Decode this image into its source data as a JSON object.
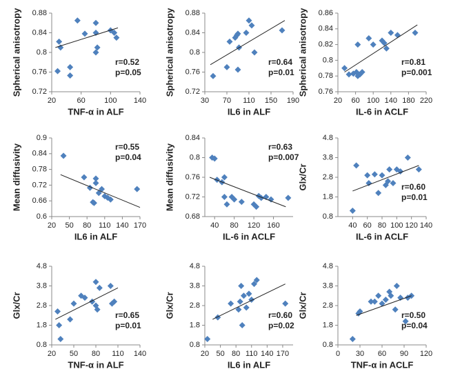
{
  "chart_data": [
    {
      "type": "scatter",
      "ylabel": "Spherical anisotropy",
      "xlabel": "TNF-α in ALF",
      "xlim": [
        20,
        140
      ],
      "xticks": [
        20,
        60,
        100,
        140
      ],
      "ylim": [
        0.72,
        0.88
      ],
      "yticks": [
        0.72,
        0.76,
        0.8,
        0.84,
        0.88
      ],
      "color": "#4f81bd",
      "x": [
        30,
        32,
        28,
        45,
        45,
        55,
        65,
        80,
        80,
        80,
        82,
        100,
        105,
        108
      ],
      "values": [
        0.822,
        0.81,
        0.762,
        0.77,
        0.753,
        0.865,
        0.838,
        0.86,
        0.84,
        0.8,
        0.81,
        0.845,
        0.84,
        0.83
      ],
      "trendline": {
        "x": [
          25,
          110
        ],
        "y": [
          0.81,
          0.85
        ]
      },
      "annotations": [
        "r=0.52",
        "p=0.05"
      ],
      "annotation_corner": "lower-right"
    },
    {
      "type": "scatter",
      "ylabel": "Spherical anisotropy",
      "xlabel": "IL6 in ALF",
      "xlim": [
        30,
        190
      ],
      "xticks": [
        30,
        70,
        110,
        150,
        190
      ],
      "ylim": [
        0.72,
        0.88
      ],
      "yticks": [
        0.72,
        0.76,
        0.8,
        0.84,
        0.88
      ],
      "color": "#4f81bd",
      "x": [
        45,
        70,
        75,
        85,
        88,
        90,
        92,
        90,
        105,
        110,
        115,
        120,
        170
      ],
      "values": [
        0.752,
        0.77,
        0.822,
        0.83,
        0.835,
        0.838,
        0.81,
        0.765,
        0.84,
        0.865,
        0.855,
        0.8,
        0.845
      ],
      "trendline": {
        "x": [
          40,
          175
        ],
        "y": [
          0.775,
          0.865
        ]
      },
      "annotations": [
        "r=0.64",
        "p=0.01"
      ],
      "annotation_corner": "lower-right"
    },
    {
      "type": "scatter",
      "ylabel": "Spherical anisotropy",
      "xlabel": "IL-6 in ACLF",
      "xlim": [
        20,
        220
      ],
      "xticks": [
        20,
        60,
        100,
        140,
        180,
        220
      ],
      "ylim": [
        0.76,
        0.86
      ],
      "yticks": [
        0.76,
        0.78,
        0.8,
        0.82,
        0.84,
        0.86
      ],
      "color": "#4f81bd",
      "x": [
        35,
        45,
        55,
        62,
        65,
        70,
        75,
        65,
        90,
        100,
        120,
        125,
        130,
        140,
        155,
        195
      ],
      "values": [
        0.79,
        0.782,
        0.783,
        0.785,
        0.78,
        0.782,
        0.785,
        0.82,
        0.828,
        0.82,
        0.825,
        0.822,
        0.815,
        0.835,
        0.832,
        0.835
      ],
      "trendline": {
        "x": [
          35,
          200
        ],
        "y": [
          0.785,
          0.845
        ]
      },
      "annotations": [
        "r=0.81",
        "p=0.001"
      ],
      "annotation_corner": "lower-right"
    },
    {
      "type": "scatter",
      "ylabel": "Mean diffusivity",
      "xlabel": "IL6 in ALF",
      "xlim": [
        20,
        170
      ],
      "xticks": [
        20,
        50,
        80,
        110,
        140,
        170
      ],
      "ylim": [
        0.6,
        0.9
      ],
      "yticks": [
        0.6,
        0.66,
        0.72,
        0.78,
        0.84,
        0.9
      ],
      "color": "#4f81bd",
      "x": [
        40,
        75,
        85,
        90,
        92,
        95,
        95,
        100,
        105,
        110,
        115,
        120,
        165
      ],
      "values": [
        0.832,
        0.75,
        0.71,
        0.655,
        0.652,
        0.745,
        0.728,
        0.69,
        0.705,
        0.678,
        0.672,
        0.665,
        0.705
      ],
      "trendline": {
        "x": [
          35,
          170
        ],
        "y": [
          0.76,
          0.635
        ]
      },
      "annotations": [
        "r=0.55",
        "p=0.04"
      ],
      "annotation_corner": "upper-right"
    },
    {
      "type": "scatter",
      "ylabel": "Mean diffusivity",
      "xlabel": "IL-6 in ACLF",
      "xlim": [
        20,
        200
      ],
      "xticks": [
        40,
        80,
        120,
        160
      ],
      "ylim": [
        0.68,
        0.84
      ],
      "yticks": [
        0.68,
        0.72,
        0.76,
        0.8,
        0.84
      ],
      "color": "#4f81bd",
      "x": [
        35,
        40,
        45,
        55,
        60,
        60,
        65,
        75,
        80,
        95,
        120,
        125,
        130,
        135,
        145,
        155,
        190
      ],
      "values": [
        0.8,
        0.798,
        0.755,
        0.75,
        0.76,
        0.72,
        0.705,
        0.72,
        0.715,
        0.71,
        0.705,
        0.7,
        0.722,
        0.718,
        0.72,
        0.715,
        0.718
      ],
      "trendline": {
        "x": [
          30,
          185
        ],
        "y": [
          0.76,
          0.7
        ]
      },
      "annotations": [
        "r=0.63",
        "p=0.007"
      ],
      "annotation_corner": "upper-right"
    },
    {
      "type": "scatter",
      "ylabel": "Glx/Cr",
      "xlabel": "IL-6 in ACLF",
      "xlim": [
        20,
        140
      ],
      "xticks": [
        40,
        60,
        80,
        100,
        120,
        140
      ],
      "ylim": [
        0.8,
        4.8
      ],
      "yticks": [
        0.8,
        1.8,
        2.8,
        3.8,
        4.8
      ],
      "color": "#4f81bd",
      "x": [
        40,
        45,
        60,
        62,
        70,
        75,
        80,
        85,
        88,
        90,
        95,
        100,
        105,
        115,
        130
      ],
      "values": [
        1.1,
        3.4,
        2.9,
        2.5,
        2.95,
        2.0,
        2.9,
        2.4,
        2.6,
        3.2,
        2.5,
        3.2,
        3.1,
        3.8,
        3.2
      ],
      "trendline": {
        "x": [
          40,
          130
        ],
        "y": [
          2.1,
          3.4
        ]
      },
      "annotations": [
        "r=0.60",
        "p=0.01"
      ],
      "annotation_corner": "lower-right"
    },
    {
      "type": "scatter",
      "ylabel": "Glx/Cr",
      "xlabel": "TNF-α in ALF",
      "xlim": [
        20,
        140
      ],
      "xticks": [
        20,
        50,
        80,
        110,
        140
      ],
      "ylim": [
        0.8,
        4.8
      ],
      "yticks": [
        0.8,
        1.8,
        2.8,
        3.8,
        4.8
      ],
      "color": "#4f81bd",
      "x": [
        28,
        30,
        32,
        45,
        50,
        60,
        65,
        75,
        80,
        82,
        80,
        85,
        100,
        102,
        105
      ],
      "values": [
        2.5,
        1.8,
        1.1,
        2.1,
        2.9,
        3.3,
        3.2,
        3.0,
        2.8,
        2.6,
        4.0,
        3.7,
        3.8,
        2.9,
        3.0
      ],
      "trendline": {
        "x": [
          25,
          110
        ],
        "y": [
          2.1,
          3.7
        ]
      },
      "annotations": [
        "r=0.65",
        "p=0.01"
      ],
      "annotation_corner": "lower-right"
    },
    {
      "type": "scatter",
      "ylabel": "Glx/Cr",
      "xlabel": "IL6 in ALF",
      "xlim": [
        20,
        190
      ],
      "xticks": [
        20,
        50,
        80,
        110,
        140,
        170
      ],
      "ylim": [
        0.8,
        4.8
      ],
      "yticks": [
        0.8,
        1.8,
        2.8,
        3.8,
        4.8
      ],
      "color": "#4f81bd",
      "x": [
        25,
        45,
        70,
        85,
        88,
        90,
        92,
        95,
        100,
        105,
        110,
        115,
        120,
        175
      ],
      "values": [
        1.1,
        2.2,
        2.9,
        2.6,
        3.0,
        3.8,
        1.8,
        3.3,
        2.7,
        3.4,
        3.1,
        3.9,
        4.1,
        2.9
      ],
      "trendline": {
        "x": [
          35,
          175
        ],
        "y": [
          2.1,
          3.9
        ]
      },
      "annotations": [
        "r=0.60",
        "p=0.02"
      ],
      "annotation_corner": "lower-right"
    },
    {
      "type": "scatter",
      "ylabel": "Glx/Cr",
      "xlabel": "TNF-α in ACLF",
      "xlim": [
        0,
        120
      ],
      "xticks": [
        0,
        30,
        60,
        90,
        120
      ],
      "ylim": [
        0.8,
        4.8
      ],
      "yticks": [
        0.8,
        1.8,
        2.8,
        3.8,
        4.8
      ],
      "color": "#4f81bd",
      "x": [
        20,
        28,
        30,
        45,
        50,
        55,
        60,
        65,
        70,
        72,
        78,
        80,
        85,
        92,
        95,
        100
      ],
      "values": [
        1.1,
        2.4,
        2.5,
        3.0,
        3.0,
        3.3,
        2.9,
        3.1,
        3.5,
        3.3,
        2.6,
        3.8,
        3.2,
        2.0,
        3.2,
        3.3
      ],
      "trendline": {
        "x": [
          25,
          100
        ],
        "y": [
          2.3,
          3.3
        ]
      },
      "annotations": [
        "r=0.50",
        "p=0.04"
      ],
      "annotation_corner": "lower-right"
    }
  ]
}
